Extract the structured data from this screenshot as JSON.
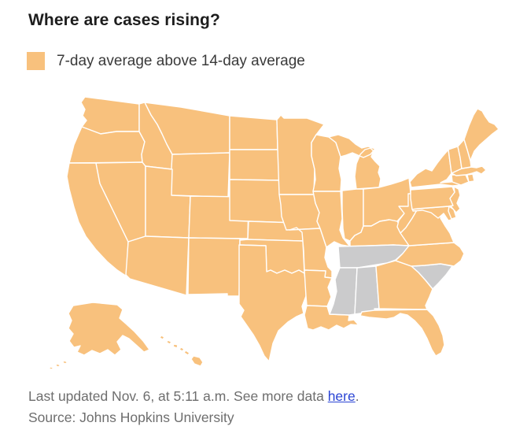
{
  "title": "Where are cases rising?",
  "legend": {
    "label": "7-day average above 14-day average",
    "swatch_color": "#F8C17D"
  },
  "map": {
    "colors": {
      "rising": "#F8C17D",
      "not_rising": "#CBCBCC",
      "border": "#FFFFFF"
    },
    "states": [
      {
        "id": "WA",
        "name": "Washington",
        "rising": true
      },
      {
        "id": "OR",
        "name": "Oregon",
        "rising": true
      },
      {
        "id": "CA",
        "name": "California",
        "rising": true
      },
      {
        "id": "NV",
        "name": "Nevada",
        "rising": true
      },
      {
        "id": "ID",
        "name": "Idaho",
        "rising": true
      },
      {
        "id": "MT",
        "name": "Montana",
        "rising": true
      },
      {
        "id": "WY",
        "name": "Wyoming",
        "rising": true
      },
      {
        "id": "UT",
        "name": "Utah",
        "rising": true
      },
      {
        "id": "CO",
        "name": "Colorado",
        "rising": true
      },
      {
        "id": "AZ",
        "name": "Arizona",
        "rising": true
      },
      {
        "id": "NM",
        "name": "New Mexico",
        "rising": true
      },
      {
        "id": "ND",
        "name": "North Dakota",
        "rising": true
      },
      {
        "id": "SD",
        "name": "South Dakota",
        "rising": true
      },
      {
        "id": "NE",
        "name": "Nebraska",
        "rising": true
      },
      {
        "id": "KS",
        "name": "Kansas",
        "rising": true
      },
      {
        "id": "OK",
        "name": "Oklahoma",
        "rising": true
      },
      {
        "id": "TX",
        "name": "Texas",
        "rising": true
      },
      {
        "id": "MN",
        "name": "Minnesota",
        "rising": true
      },
      {
        "id": "IA",
        "name": "Iowa",
        "rising": true
      },
      {
        "id": "MO",
        "name": "Missouri",
        "rising": true
      },
      {
        "id": "AR",
        "name": "Arkansas",
        "rising": true
      },
      {
        "id": "LA",
        "name": "Louisiana",
        "rising": true
      },
      {
        "id": "WI",
        "name": "Wisconsin",
        "rising": true
      },
      {
        "id": "IL",
        "name": "Illinois",
        "rising": true
      },
      {
        "id": "MI",
        "name": "Michigan",
        "rising": true
      },
      {
        "id": "IN",
        "name": "Indiana",
        "rising": true
      },
      {
        "id": "OH",
        "name": "Ohio",
        "rising": true
      },
      {
        "id": "KY",
        "name": "Kentucky",
        "rising": true
      },
      {
        "id": "TN",
        "name": "Tennessee",
        "rising": false
      },
      {
        "id": "MS",
        "name": "Mississippi",
        "rising": false
      },
      {
        "id": "AL",
        "name": "Alabama",
        "rising": false
      },
      {
        "id": "SC",
        "name": "South Carolina",
        "rising": false
      },
      {
        "id": "GA",
        "name": "Georgia",
        "rising": true
      },
      {
        "id": "FL",
        "name": "Florida",
        "rising": true
      },
      {
        "id": "NC",
        "name": "North Carolina",
        "rising": true
      },
      {
        "id": "VA",
        "name": "Virginia",
        "rising": true
      },
      {
        "id": "WV",
        "name": "West Virginia",
        "rising": true
      },
      {
        "id": "MD",
        "name": "Maryland",
        "rising": true
      },
      {
        "id": "DE",
        "name": "Delaware",
        "rising": true
      },
      {
        "id": "NJ",
        "name": "New Jersey",
        "rising": true
      },
      {
        "id": "PA",
        "name": "Pennsylvania",
        "rising": true
      },
      {
        "id": "NY",
        "name": "New York",
        "rising": true
      },
      {
        "id": "CT",
        "name": "Connecticut",
        "rising": true
      },
      {
        "id": "RI",
        "name": "Rhode Island",
        "rising": true
      },
      {
        "id": "MA",
        "name": "Massachusetts",
        "rising": true
      },
      {
        "id": "VT",
        "name": "Vermont",
        "rising": true
      },
      {
        "id": "NH",
        "name": "New Hampshire",
        "rising": true
      },
      {
        "id": "ME",
        "name": "Maine",
        "rising": true
      },
      {
        "id": "AK",
        "name": "Alaska",
        "rising": true
      },
      {
        "id": "HI",
        "name": "Hawaii",
        "rising": true
      }
    ]
  },
  "footer": {
    "updated_prefix": "Last updated Nov. 6, at 5:11 a.m. See more data ",
    "link_text": "here",
    "updated_suffix": ".",
    "link_color": "#2A44D4",
    "source": "Source: Johns Hopkins University"
  }
}
